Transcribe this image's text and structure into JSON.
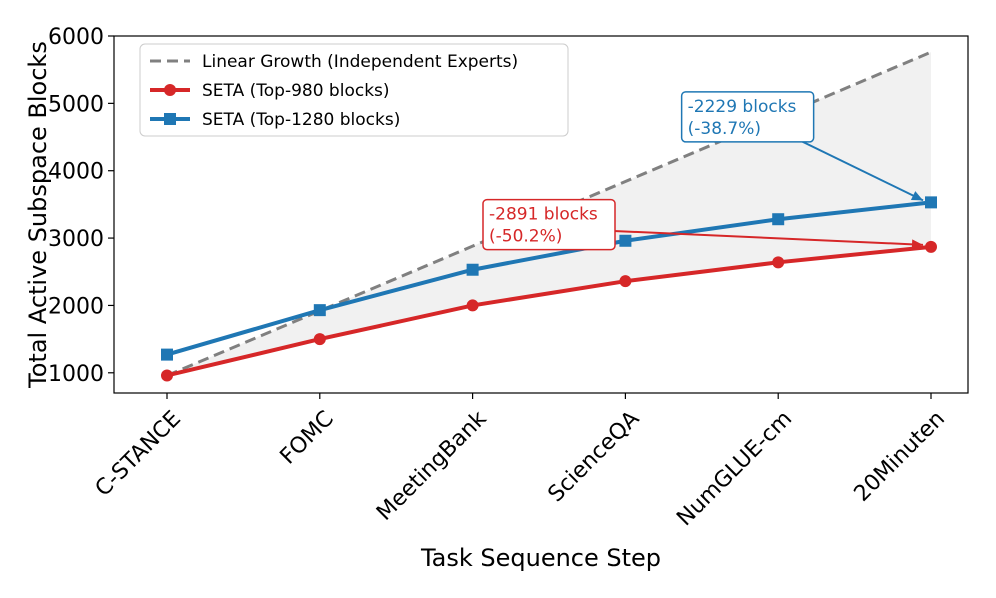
{
  "chart_data": {
    "type": "line",
    "title": "",
    "xlabel": "Task Sequence Step",
    "ylabel": "Total Active Subspace Blocks",
    "categories": [
      "C-STANCE",
      "FOMC",
      "MeetingBank",
      "ScienceQA",
      "NumGLUE-cm",
      "20Minuten"
    ],
    "ylim": [
      700,
      6000
    ],
    "yticks": [
      1000,
      2000,
      3000,
      4000,
      5000,
      6000
    ],
    "grid": false,
    "legend_position": "top-left",
    "series": [
      {
        "name": "Linear Growth (Independent Experts)",
        "values": [
          960,
          1920,
          2880,
          3840,
          4800,
          5760
        ],
        "color": "#808080",
        "style": "dashed",
        "marker": "none"
      },
      {
        "name": "SETA (Top-980 blocks)",
        "values": [
          960,
          1500,
          2000,
          2360,
          2640,
          2870
        ],
        "color": "#d62728",
        "style": "solid",
        "marker": "circle"
      },
      {
        "name": "SETA (Top-1280 blocks)",
        "values": [
          1270,
          1930,
          2530,
          2960,
          3280,
          3530
        ],
        "color": "#1f77b4",
        "style": "solid",
        "marker": "square"
      }
    ],
    "shaded_region": {
      "between": [
        "Linear Growth (Independent Experts)",
        "SETA (Top-980 blocks)"
      ],
      "color": "#e6e6e6"
    },
    "annotations": [
      {
        "lines": [
          "-2891 blocks",
          "(-50.2%)"
        ],
        "color": "#d62728",
        "target_series": "SETA (Top-980 blocks)",
        "target_category": "20Minuten",
        "anchor_x": 2.5,
        "anchor_y": 3200
      },
      {
        "lines": [
          "-2229 blocks",
          "(-38.7%)"
        ],
        "color": "#1f77b4",
        "target_series": "SETA (Top-1280 blocks)",
        "target_category": "20Minuten",
        "anchor_x": 3.8,
        "anchor_y": 4800
      }
    ]
  }
}
